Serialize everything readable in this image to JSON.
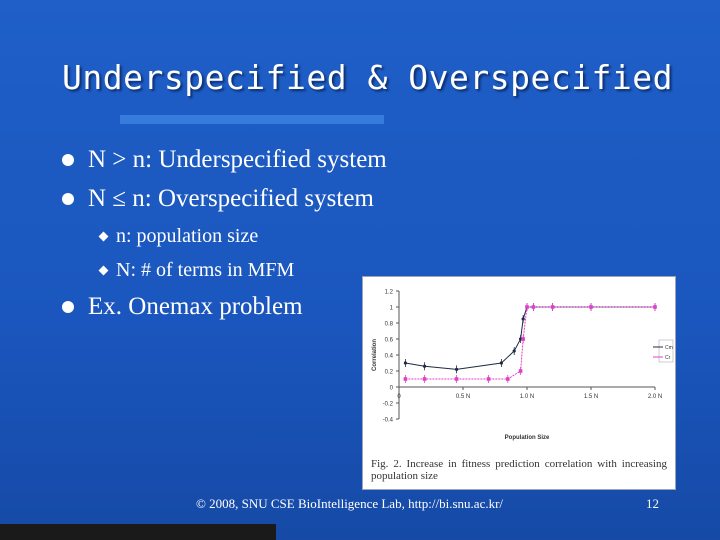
{
  "slide": {
    "title": "Underspecified & Overspecified",
    "bullets": [
      "N > n: Underspecified system",
      "N ≤ n: Overspecified system"
    ],
    "sub_bullets": [
      "n: population size",
      "N: # of terms in MFM"
    ],
    "example": "Ex. Onemax problem",
    "footer": "© 2008, SNU CSE BioIntelligence Lab, http://bi.snu.ac.kr/",
    "page_number": "12",
    "colors": {
      "background": "#1a56bd",
      "rule": "#3b7ee0",
      "series_cm": "#1f2a44",
      "series_cr": "#e040c8"
    }
  },
  "figure": {
    "caption": "Fig. 2. Increase in fitness prediction correlation with increasing population size",
    "chart_data": {
      "type": "line",
      "xlabel": "Population Size",
      "ylabel": "Correlation",
      "x_tick_labels": [
        "0",
        "0.5 N",
        "1.0 N",
        "1.5 N",
        "2.0 N"
      ],
      "y_tick_labels": [
        "1.2",
        "1",
        "0.8",
        "0.6",
        "0.4",
        "0.2",
        "0",
        "-0.2",
        "-0.4"
      ],
      "xlim": [
        0,
        2
      ],
      "ylim": [
        -0.4,
        1.2
      ],
      "legend": "right",
      "series": [
        {
          "name": "Cm",
          "color": "#1f2a44",
          "x": [
            0.05,
            0.2,
            0.45,
            0.8,
            0.9,
            0.95,
            0.97,
            1.0,
            1.05,
            1.2,
            1.5,
            2.0
          ],
          "y": [
            0.3,
            0.26,
            0.22,
            0.3,
            0.45,
            0.6,
            0.85,
            1.0,
            1.0,
            1.0,
            1.0,
            1.0
          ]
        },
        {
          "name": "Cr",
          "color": "#e040c8",
          "x": [
            0.05,
            0.2,
            0.45,
            0.7,
            0.85,
            0.95,
            0.97,
            1.0,
            1.05,
            1.2,
            1.5,
            2.0
          ],
          "y": [
            0.1,
            0.1,
            0.1,
            0.1,
            0.1,
            0.2,
            0.6,
            1.0,
            1.0,
            1.0,
            1.0,
            1.0
          ]
        }
      ]
    }
  }
}
